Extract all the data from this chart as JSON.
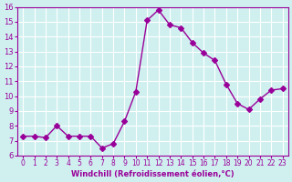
{
  "x": [
    0,
    1,
    2,
    3,
    4,
    5,
    6,
    7,
    8,
    9,
    10,
    11,
    12,
    13,
    14,
    15,
    16,
    17,
    18,
    19,
    20,
    21,
    22,
    23
  ],
  "y": [
    7.3,
    7.3,
    7.2,
    8.0,
    7.3,
    7.3,
    7.3,
    6.5,
    6.8,
    8.3,
    10.3,
    15.1,
    15.8,
    14.8,
    14.6,
    13.6,
    12.9,
    12.4,
    10.8,
    9.5,
    9.1,
    9.8,
    10.4,
    10.5
  ],
  "line_color": "#990099",
  "marker": "D",
  "marker_size": 3,
  "bg_color": "#d0f0f0",
  "grid_color": "#ffffff",
  "xlabel": "Windchill (Refroidissement éolien,°C)",
  "xlabel_color": "#990099",
  "tick_color": "#990099",
  "ylim": [
    6,
    16
  ],
  "xlim": [
    -0.5,
    23.5
  ],
  "yticks": [
    6,
    7,
    8,
    9,
    10,
    11,
    12,
    13,
    14,
    15,
    16
  ],
  "xticks": [
    0,
    1,
    2,
    3,
    4,
    5,
    6,
    7,
    8,
    9,
    10,
    11,
    12,
    13,
    14,
    15,
    16,
    17,
    18,
    19,
    20,
    21,
    22,
    23
  ]
}
